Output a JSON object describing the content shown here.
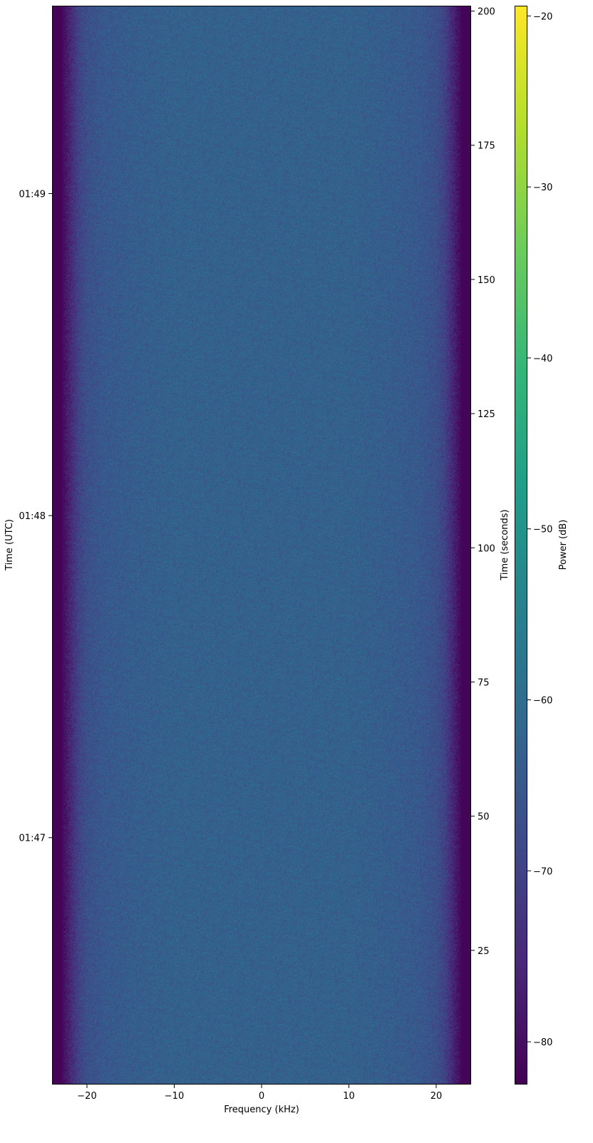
{
  "chart_data": {
    "type": "heatmap",
    "title": "",
    "xlabel": "Frequency (kHz)",
    "ylabel_left": "Time (UTC)",
    "ylabel_right": "Time (seconds)",
    "colorbar_label": "Power (dB)",
    "colormap": "viridis",
    "xlim": [
      -24,
      24
    ],
    "ylim_seconds": [
      0,
      201
    ],
    "clim": [
      -82.5,
      -19.4
    ],
    "x_ticks": [
      -20,
      -10,
      0,
      10,
      20
    ],
    "x_tick_labels": [
      "−20",
      "−10",
      "0",
      "10",
      "20"
    ],
    "right_y_ticks": [
      25,
      50,
      75,
      100,
      125,
      150,
      175,
      200
    ],
    "right_y_tick_labels": [
      "25",
      "50",
      "75",
      "100",
      "125",
      "150",
      "175",
      "200"
    ],
    "utc_ticks": [
      {
        "label": "01:47",
        "seconds": 46
      },
      {
        "label": "01:48",
        "seconds": 106
      },
      {
        "label": "01:49",
        "seconds": 166
      }
    ],
    "colorbar_ticks": [
      -20,
      -30,
      -40,
      -50,
      -60,
      -70,
      -80
    ],
    "colorbar_tick_labels": [
      "−20",
      "−30",
      "−40",
      "−50",
      "−60",
      "−70",
      "−80"
    ],
    "frequency_profile": {
      "frequency_khz": [
        -24,
        -23,
        -22,
        -21,
        -20,
        -18,
        -15,
        -10,
        0,
        10,
        15,
        18,
        20,
        21,
        22,
        23,
        24
      ],
      "power_db": [
        -82,
        -82,
        -76,
        -70,
        -67,
        -65,
        -64,
        -63,
        -63,
        -63,
        -64,
        -65,
        -67,
        -70,
        -76,
        -82,
        -82
      ]
    },
    "grid": false
  }
}
